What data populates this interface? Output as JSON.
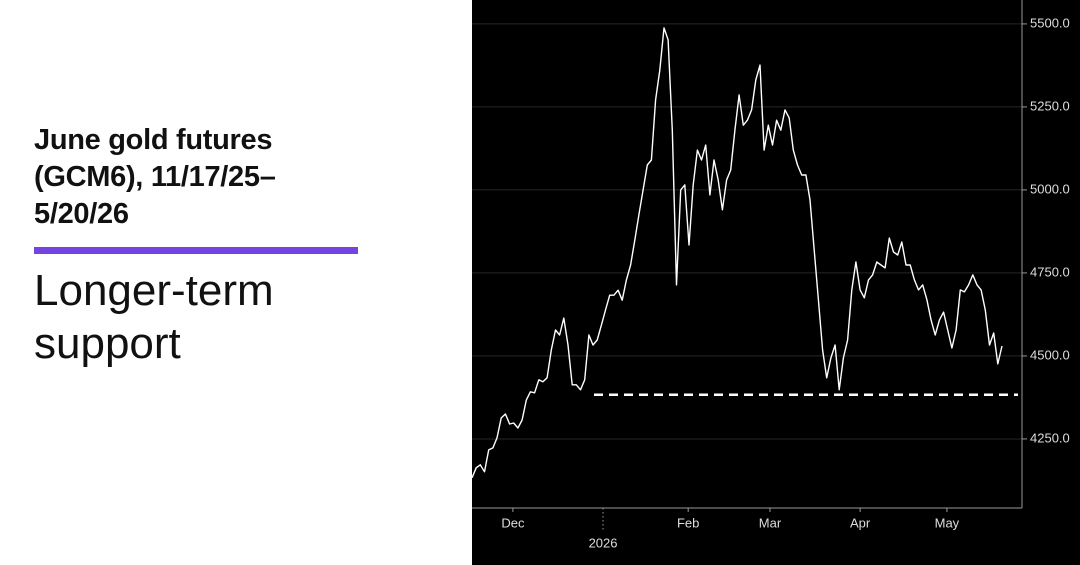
{
  "chart_data": {
    "type": "line",
    "title": "June gold futures (GCM6), 11/17/25–5/20/26",
    "subtitle": "Longer-term support",
    "accent_color": "#7443e0",
    "background": "#000000",
    "series": [
      {
        "color": "#ffffff",
        "values": [
          4133,
          4163,
          4172,
          4151,
          4217,
          4223,
          4253,
          4313,
          4325,
          4295,
          4298,
          4283,
          4307,
          4367,
          4392,
          4389,
          4428,
          4422,
          4434,
          4518,
          4578,
          4563,
          4614,
          4533,
          4413,
          4413,
          4398,
          4428,
          4563,
          4533,
          4548,
          4593,
          4638,
          4683,
          4683,
          4698,
          4668,
          4729,
          4774,
          4849,
          4925,
          5000,
          5075,
          5090,
          5271,
          5361,
          5488,
          5452,
          5180,
          4714,
          5000,
          5015,
          4834,
          5015,
          5120,
          5090,
          5135,
          4985,
          5090,
          5030,
          4940,
          5030,
          5060,
          5180,
          5286,
          5195,
          5210,
          5241,
          5331,
          5376,
          5120,
          5195,
          5135,
          5210,
          5180,
          5241,
          5217,
          5120,
          5075,
          5045,
          5045,
          4970,
          4819,
          4669,
          4518,
          4434,
          4494,
          4533,
          4398,
          4494,
          4548,
          4699,
          4783,
          4699,
          4675,
          4729,
          4744,
          4783,
          4774,
          4765,
          4855,
          4813,
          4804,
          4843,
          4774,
          4774,
          4729,
          4699,
          4714,
          4669,
          4608,
          4563,
          4608,
          4632,
          4578,
          4524,
          4578,
          4699,
          4693,
          4714,
          4744,
          4714,
          4699,
          4638,
          4533,
          4569,
          4476,
          4530
        ]
      }
    ],
    "reference_lines": [
      {
        "value": 4383,
        "style": "dashed",
        "color": "#ffffff"
      }
    ],
    "xlim": [
      0,
      127
    ],
    "xticks": [
      {
        "value": 9.8,
        "label": "Dec"
      },
      {
        "value": 31.4,
        "label": "2026"
      },
      {
        "value": 51.8,
        "label": "Feb"
      },
      {
        "value": 71.4,
        "label": "Mar"
      },
      {
        "value": 93.0,
        "label": "Apr"
      },
      {
        "value": 113.8,
        "label": "May"
      }
    ],
    "ylim": [
      4042,
      5572
    ],
    "yticks": [
      {
        "value": 4250,
        "label": "4250.0"
      },
      {
        "value": 4500,
        "label": "4500.0"
      },
      {
        "value": 4750,
        "label": "4750.0"
      },
      {
        "value": 5000,
        "label": "5000.0"
      },
      {
        "value": 5250,
        "label": "5250.0"
      },
      {
        "value": 5500,
        "label": "5500.0"
      }
    ],
    "grid": true
  }
}
